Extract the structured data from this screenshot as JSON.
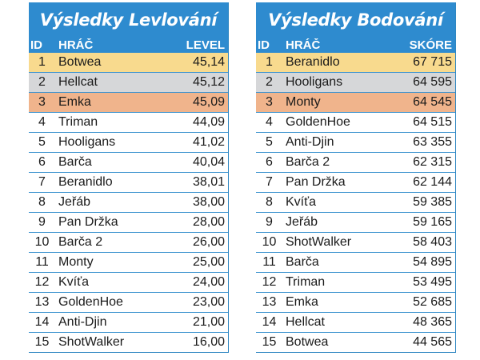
{
  "left_board": {
    "title": "Výsledky Levlování",
    "headers": {
      "id": "ID",
      "player": "HRÁČ",
      "value": "LEVEL"
    },
    "rows": [
      {
        "id": "1",
        "player": "Botwea",
        "value": "45,14"
      },
      {
        "id": "2",
        "player": "Hellcat",
        "value": "45,12"
      },
      {
        "id": "3",
        "player": "Emka",
        "value": "45,09"
      },
      {
        "id": "4",
        "player": "Triman",
        "value": "44,09"
      },
      {
        "id": "5",
        "player": "Hooligans",
        "value": "41,02"
      },
      {
        "id": "6",
        "player": "Barča",
        "value": "40,04"
      },
      {
        "id": "7",
        "player": "Beranidlo",
        "value": "38,01"
      },
      {
        "id": "8",
        "player": "Jeřáb",
        "value": "38,00"
      },
      {
        "id": "9",
        "player": "Pan Držka",
        "value": "28,00"
      },
      {
        "id": "10",
        "player": "Barča 2",
        "value": "26,00"
      },
      {
        "id": "11",
        "player": "Monty",
        "value": "25,00"
      },
      {
        "id": "12",
        "player": "Kvíťa",
        "value": "24,00"
      },
      {
        "id": "13",
        "player": "GoldenHoe",
        "value": "23,00"
      },
      {
        "id": "14",
        "player": "Anti-Djin",
        "value": "21,00"
      },
      {
        "id": "15",
        "player": "ShotWalker",
        "value": "16,00"
      }
    ]
  },
  "right_board": {
    "title": "Výsledky Bodování",
    "headers": {
      "id": "ID",
      "player": "HRÁČ",
      "value": "SKÓRE"
    },
    "rows": [
      {
        "id": "1",
        "player": "Beranidlo",
        "value": "67 715"
      },
      {
        "id": "2",
        "player": "Hooligans",
        "value": "64 595"
      },
      {
        "id": "3",
        "player": "Monty",
        "value": "64 545"
      },
      {
        "id": "4",
        "player": "GoldenHoe",
        "value": "64 515"
      },
      {
        "id": "5",
        "player": "Anti-Djin",
        "value": "63 355"
      },
      {
        "id": "6",
        "player": "Barča 2",
        "value": "62 315"
      },
      {
        "id": "7",
        "player": "Pan Držka",
        "value": "62 144"
      },
      {
        "id": "8",
        "player": "Kvíťa",
        "value": "59 385"
      },
      {
        "id": "9",
        "player": "Jeřáb",
        "value": "59 165"
      },
      {
        "id": "10",
        "player": "ShotWalker",
        "value": "58 403"
      },
      {
        "id": "11",
        "player": "Barča",
        "value": "54 895"
      },
      {
        "id": "12",
        "player": "Triman",
        "value": "53 495"
      },
      {
        "id": "13",
        "player": "Emka",
        "value": "52 685"
      },
      {
        "id": "14",
        "player": "Hellcat",
        "value": "48 365"
      },
      {
        "id": "15",
        "player": "Botwea",
        "value": "44 565"
      }
    ]
  },
  "colors": {
    "header_blue": "#2e8bcf",
    "gold": "#f8da8e",
    "silver": "#d6d7d9",
    "bronze": "#f0b48c"
  }
}
